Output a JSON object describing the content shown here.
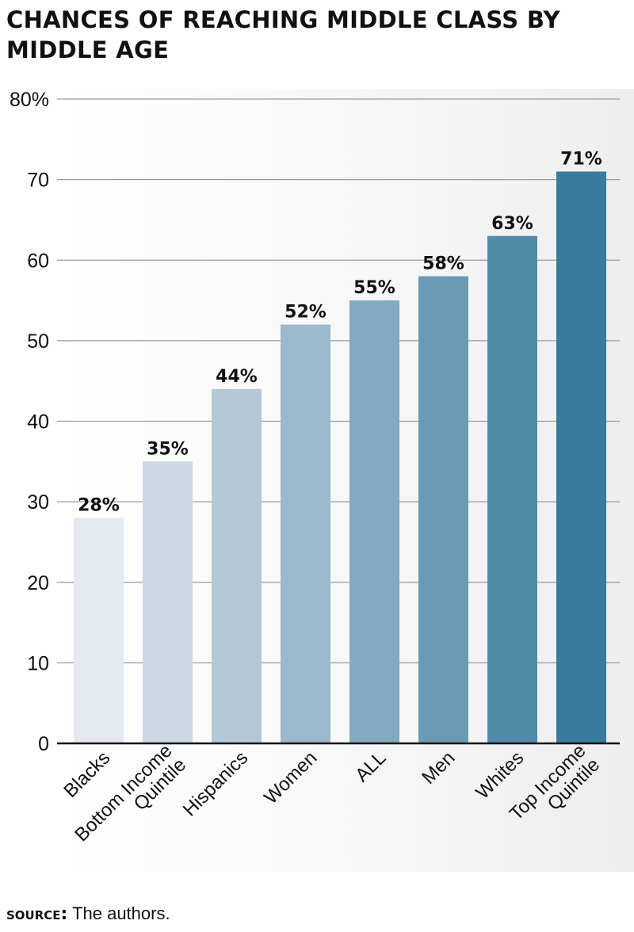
{
  "title": "CHANCES OF REACHING MIDDLE CLASS BY MIDDLE AGE",
  "source": {
    "label": "SOURCE:",
    "text": "The authors."
  },
  "colors": {
    "bar_start": "#e4e8ef",
    "bar_end": "#397b9d",
    "grid": "#9a9a9a",
    "axis": "#111111"
  },
  "chart_data": {
    "type": "bar",
    "title": "CHANCES OF REACHING MIDDLE CLASS BY MIDDLE AGE",
    "xlabel": "",
    "ylabel": "",
    "categories": [
      [
        "Blacks"
      ],
      [
        "Bottom Income",
        "Quintile"
      ],
      [
        "Hispanics"
      ],
      [
        "Women"
      ],
      [
        "ALL"
      ],
      [
        "Men"
      ],
      [
        "Whites"
      ],
      [
        "Top Income",
        "Quintile"
      ]
    ],
    "values": [
      28,
      35,
      44,
      52,
      55,
      58,
      63,
      71
    ],
    "data_labels": [
      "28%",
      "35%",
      "44%",
      "52%",
      "55%",
      "58%",
      "63%",
      "71%"
    ],
    "ylim": [
      0,
      80
    ],
    "yticks": [
      0,
      10,
      20,
      30,
      40,
      50,
      60,
      70,
      80
    ],
    "ytick_labels": [
      "0",
      "10",
      "20",
      "30",
      "40",
      "50",
      "60",
      "70",
      "80%"
    ],
    "grid": true,
    "legend": "none"
  }
}
